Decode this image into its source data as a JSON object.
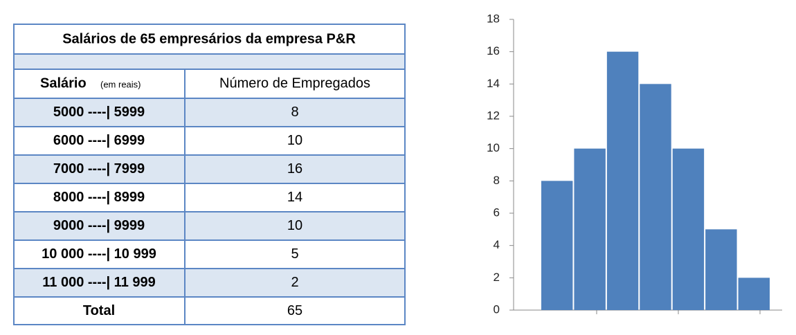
{
  "table": {
    "title": "Salários de 65 empresários da empresa P&R",
    "header": {
      "salary": "Salário",
      "salary_unit": "(em reais)",
      "count": "Número de Empregados"
    },
    "rows": [
      [
        "5000 ----| 5999",
        "8"
      ],
      [
        "6000 ----| 6999",
        "10"
      ],
      [
        "7000 ----| 7999",
        "16"
      ],
      [
        "8000 ----| 8999",
        "14"
      ],
      [
        "9000 ----| 9999",
        "10"
      ],
      [
        "10 000 ----| 10 999",
        "5"
      ],
      [
        "11 000 ----| 11 999",
        "2"
      ]
    ],
    "total": [
      "Total",
      "65"
    ]
  },
  "chart_data": {
    "type": "bar",
    "categories": [
      null,
      null,
      null,
      null,
      null,
      null,
      null
    ],
    "values": [
      8,
      10,
      16,
      14,
      10,
      5,
      2
    ],
    "color": "#4f81bd",
    "ylim": [
      0,
      18
    ],
    "yticks": [
      0,
      2,
      4,
      6,
      8,
      10,
      12,
      14,
      16,
      18
    ]
  }
}
